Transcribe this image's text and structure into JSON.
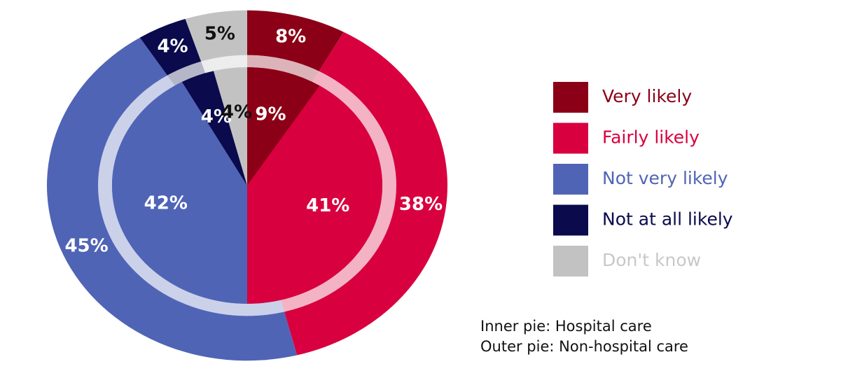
{
  "chart_data": {
    "type": "pie",
    "categories": [
      "Very likely",
      "Fairly likely",
      "Not very likely",
      "Not at all likely",
      "Don't know"
    ],
    "colors": [
      "#8b0016",
      "#d8003e",
      "#5064b6",
      "#0a0a4c",
      "#c2c2c2"
    ],
    "series": [
      {
        "values": [
          9,
          41,
          42,
          4,
          4
        ],
        "value_labels": [
          "9%",
          "41%",
          "42%",
          "4%",
          "4%"
        ]
      },
      {
        "values": [
          8,
          38,
          45,
          4,
          5
        ],
        "value_labels": [
          "8%",
          "38%",
          "45%",
          "4%",
          "5%"
        ]
      }
    ],
    "annotations": [
      "Inner pie: Hospital care",
      "Outer pie: Non-hospital care"
    ],
    "legend": "right"
  }
}
